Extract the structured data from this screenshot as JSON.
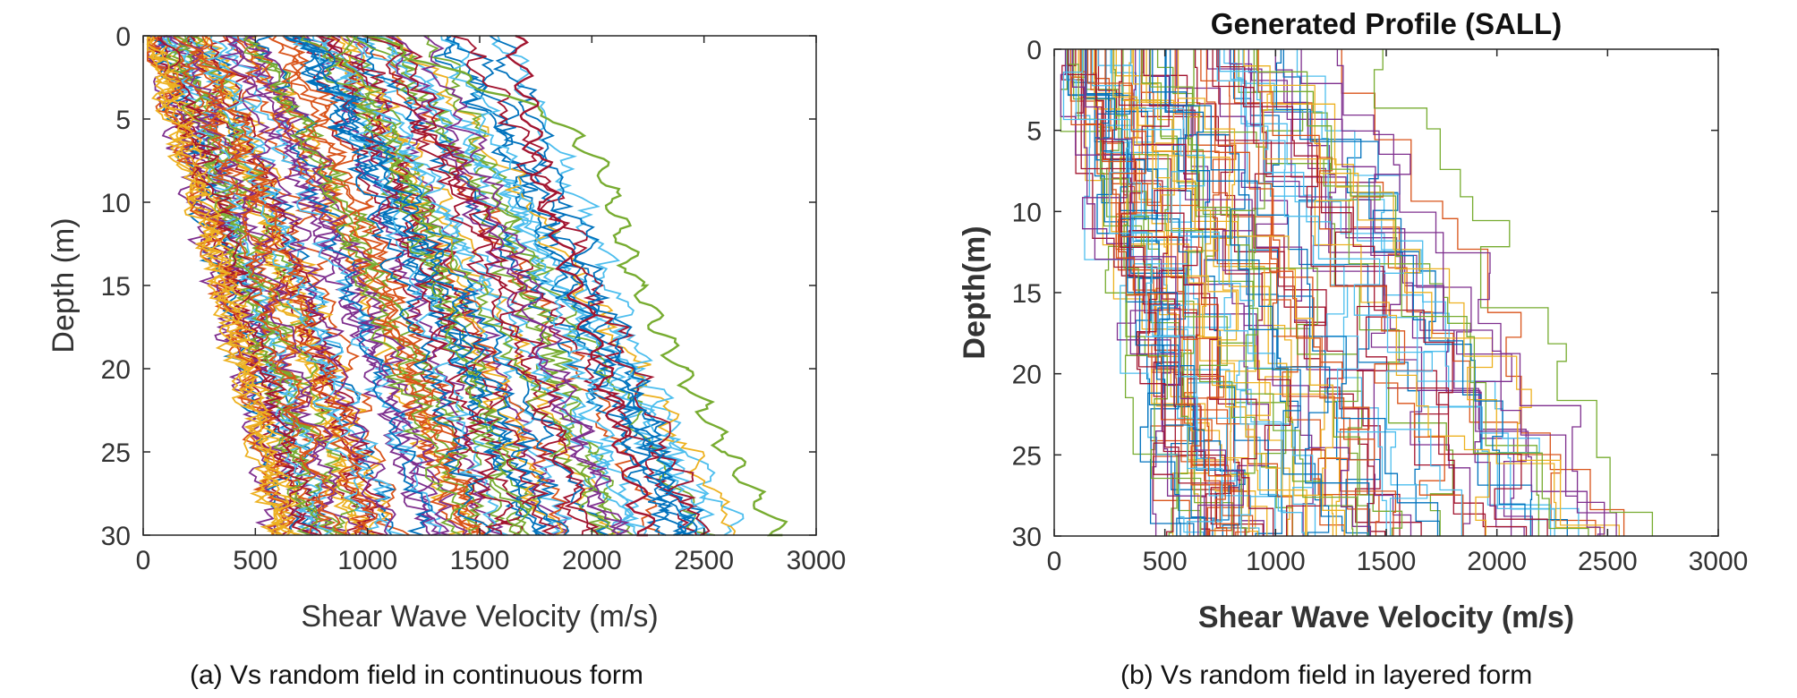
{
  "captions": {
    "a": "(a) Vs random field in continuous form",
    "b": "(b) Vs random field in layered form"
  },
  "chart_data": [
    {
      "type": "line",
      "subtype": "continuous-profiles",
      "title": "",
      "xlabel": "Shear Wave Velocity (m/s)",
      "ylabel": "Depth (m)",
      "xlim": [
        0,
        3000
      ],
      "ylim": [
        0,
        30
      ],
      "y_reversed": true,
      "x_ticks": [
        0,
        500,
        1000,
        1500,
        2000,
        2500,
        3000
      ],
      "y_ticks": [
        0,
        5,
        10,
        15,
        20,
        25,
        30
      ],
      "grid": false,
      "legend": "none",
      "series_colors": [
        "#0072BD",
        "#D95319",
        "#EDB120",
        "#7E2F8E",
        "#77AC30",
        "#4DBEEE",
        "#A2142F"
      ],
      "realization_count": 100,
      "surface_vs_range": [
        0,
        1700
      ],
      "bottom_vs_range": [
        600,
        2850
      ],
      "highlighted_series": [
        {
          "color": "#77AC30",
          "depth": [
            0,
            5,
            8,
            15,
            20,
            25,
            30
          ],
          "vs": [
            1000,
            1850,
            2050,
            2200,
            2400,
            2600,
            2850
          ]
        },
        {
          "color": "#A2142F",
          "depth": [
            0,
            10,
            20,
            30
          ],
          "vs": [
            1650,
            1800,
            2050,
            2250
          ]
        }
      ]
    },
    {
      "type": "line",
      "subtype": "layered-profiles",
      "title": "Generated Profile (SALL)",
      "xlabel": "Shear Wave Velocity (m/s)",
      "ylabel": "Depth(m)",
      "xlim": [
        0,
        3000
      ],
      "ylim": [
        0,
        30
      ],
      "y_reversed": true,
      "x_ticks": [
        0,
        500,
        1000,
        1500,
        2000,
        2500,
        3000
      ],
      "y_ticks": [
        0,
        5,
        10,
        15,
        20,
        25,
        30
      ],
      "grid": false,
      "legend": "none",
      "series_colors": [
        "#0072BD",
        "#D95319",
        "#EDB120",
        "#7E2F8E",
        "#77AC30",
        "#4DBEEE",
        "#A2142F"
      ],
      "realization_count": 100,
      "surface_vs_range": [
        50,
        1500
      ],
      "bottom_vs_range": [
        600,
        2850
      ]
    }
  ]
}
